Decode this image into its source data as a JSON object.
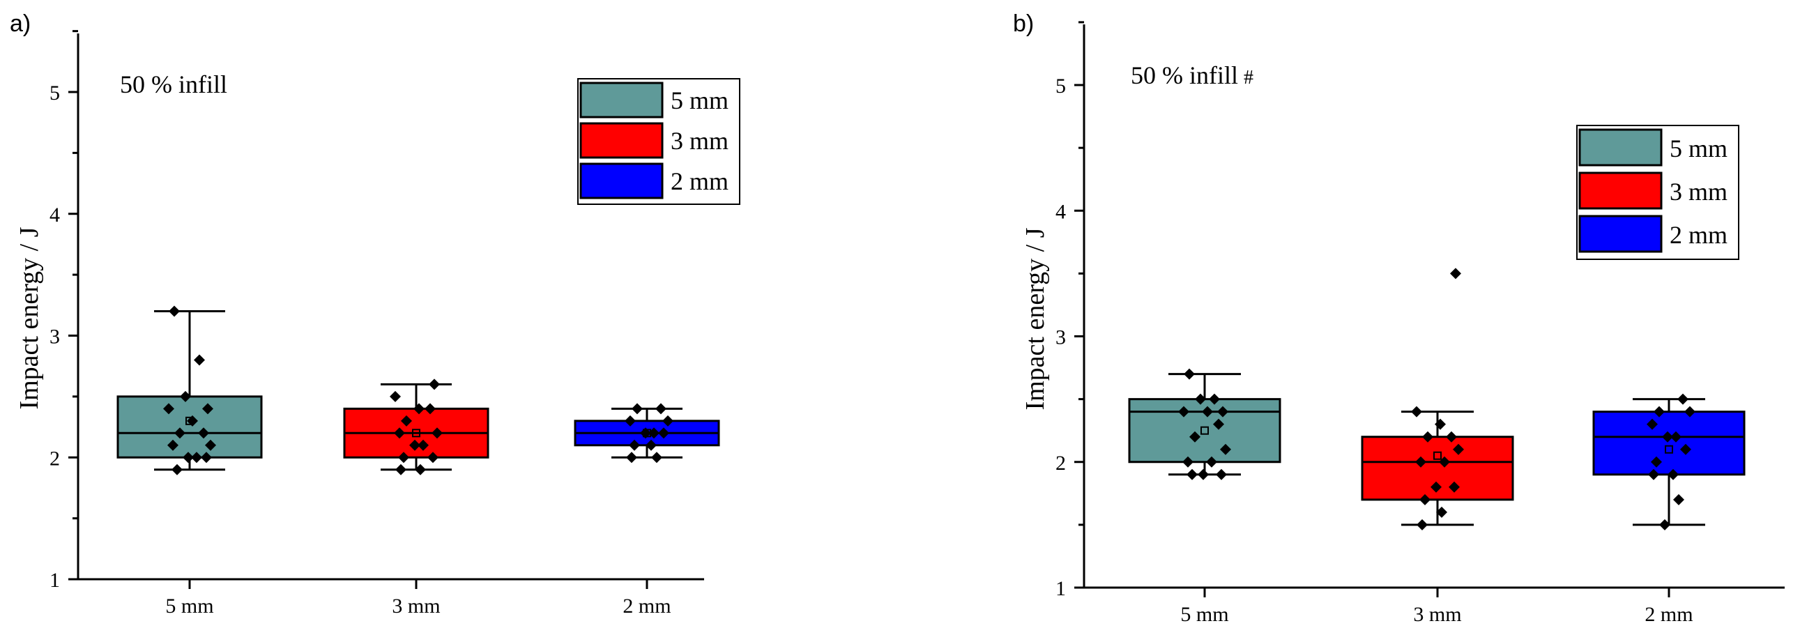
{
  "chart_data": [
    {
      "type": "box",
      "panel_label": "a)",
      "annotation": "50 % infill",
      "ylabel": "Impact energy / J",
      "xlabel": "",
      "ylim": [
        1,
        5.5
      ],
      "yticks": [
        "1",
        "2",
        "3",
        "4",
        "5"
      ],
      "categories": [
        "5 mm",
        "3 mm",
        "2 mm"
      ],
      "legend": [
        {
          "label": "5 mm",
          "color": "#5f9a99"
        },
        {
          "label": "3 mm",
          "color": "#ff0000"
        },
        {
          "label": "2 mm",
          "color": "#0000ff"
        }
      ],
      "boxes": [
        {
          "name": "5 mm",
          "color": "#5f9a99",
          "min": 1.9,
          "q1": 2.0,
          "median": 2.2,
          "q3": 2.5,
          "max": 3.2,
          "mean": 2.3,
          "points": [
            3.2,
            2.8,
            2.5,
            2.4,
            2.4,
            2.3,
            2.2,
            2.2,
            2.1,
            2.1,
            2.0,
            2.0,
            2.0,
            1.9
          ]
        },
        {
          "name": "3 mm",
          "color": "#ff0000",
          "min": 1.9,
          "q1": 2.0,
          "median": 2.2,
          "q3": 2.4,
          "max": 2.6,
          "mean": 2.2,
          "points": [
            2.6,
            2.5,
            2.4,
            2.4,
            2.3,
            2.2,
            2.2,
            2.1,
            2.1,
            2.0,
            2.0,
            1.9,
            1.9
          ]
        },
        {
          "name": "2 mm",
          "color": "#0000ff",
          "min": 2.0,
          "q1": 2.1,
          "median": 2.2,
          "q3": 2.3,
          "max": 2.4,
          "mean": 2.2,
          "points": [
            2.4,
            2.4,
            2.3,
            2.3,
            2.2,
            2.2,
            2.2,
            2.1,
            2.1,
            2.0,
            2.0
          ]
        }
      ]
    },
    {
      "type": "box",
      "panel_label": "b)",
      "annotation": "50 % infill",
      "annotation_mark": "#",
      "ylabel": "Impact energy / J",
      "xlabel": "",
      "ylim": [
        1,
        5.5
      ],
      "yticks": [
        "1",
        "2",
        "3",
        "4",
        "5"
      ],
      "categories": [
        "5 mm",
        "3 mm",
        "2 mm"
      ],
      "legend": [
        {
          "label": "5 mm",
          "color": "#5f9a99"
        },
        {
          "label": "3 mm",
          "color": "#ff0000"
        },
        {
          "label": "2 mm",
          "color": "#0000ff"
        }
      ],
      "boxes": [
        {
          "name": "5 mm",
          "color": "#5f9a99",
          "min": 1.9,
          "q1": 2.0,
          "median": 2.4,
          "q3": 2.5,
          "max": 2.7,
          "mean": 2.25,
          "points": [
            2.7,
            2.5,
            2.5,
            2.4,
            2.4,
            2.4,
            2.3,
            2.2,
            2.1,
            2.0,
            2.0,
            1.9,
            1.9,
            1.9
          ]
        },
        {
          "name": "3 mm",
          "color": "#ff0000",
          "min": 1.5,
          "q1": 1.7,
          "median": 2.0,
          "q3": 2.2,
          "max": 2.4,
          "mean": 2.05,
          "outlier": 3.5,
          "points": [
            3.5,
            2.4,
            2.3,
            2.2,
            2.2,
            2.1,
            2.0,
            2.0,
            1.8,
            1.8,
            1.7,
            1.6,
            1.5
          ]
        },
        {
          "name": "2 mm",
          "color": "#0000ff",
          "min": 1.5,
          "q1": 1.9,
          "median": 2.2,
          "q3": 2.4,
          "max": 2.5,
          "mean": 2.1,
          "points": [
            2.5,
            2.4,
            2.4,
            2.3,
            2.2,
            2.2,
            2.1,
            2.0,
            1.9,
            1.9,
            1.7,
            1.5
          ]
        }
      ]
    }
  ]
}
